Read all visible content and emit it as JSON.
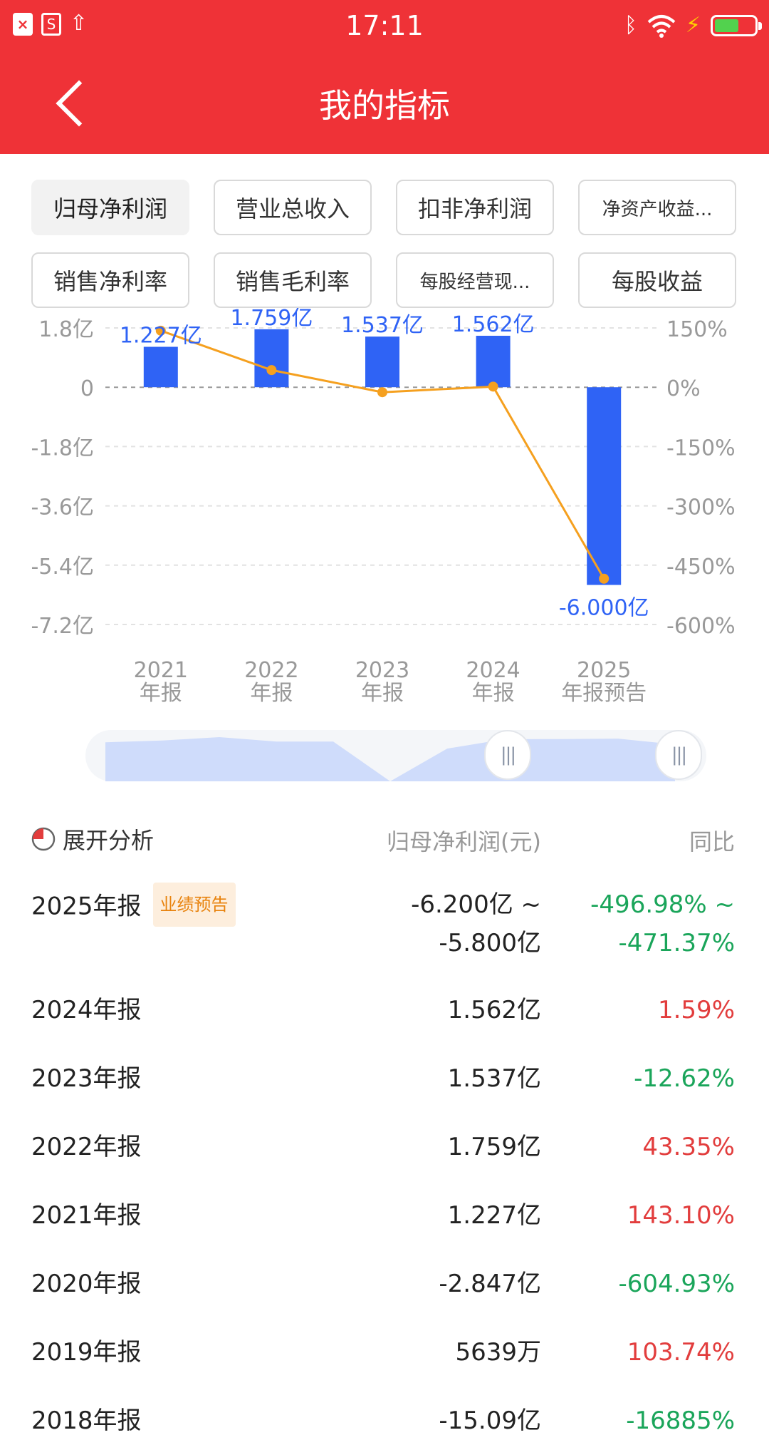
{
  "status_bar": {
    "time": "17:11",
    "left_icons": [
      "close-app-icon",
      "s-app-icon",
      "upload-icon"
    ],
    "right_icons": [
      "bluetooth-icon",
      "wifi-icon",
      "charging-icon",
      "battery-icon"
    ]
  },
  "header": {
    "title": "我的指标",
    "back_icon": "chevron-left-icon"
  },
  "tabs": [
    {
      "label": "归母净利润",
      "active": true
    },
    {
      "label": "营业总收入",
      "active": false
    },
    {
      "label": "扣非净利润",
      "active": false
    },
    {
      "label": "净资产收益...",
      "active": false
    },
    {
      "label": "销售净利率",
      "active": false
    },
    {
      "label": "销售毛利率",
      "active": false
    },
    {
      "label": "每股经营现...",
      "active": false
    },
    {
      "label": "每股收益",
      "active": false
    }
  ],
  "chart_data": {
    "type": "bar",
    "categories": [
      "2021\n年报",
      "2022\n年报",
      "2023\n年报",
      "2024\n年报",
      "2025\n年报预告"
    ],
    "y_left_ticks": [
      "1.8亿",
      "0",
      "-1.8亿",
      "-3.6亿",
      "-5.4亿",
      "-7.2亿"
    ],
    "y_right_ticks": [
      "150%",
      "0%",
      "-150%",
      "-300%",
      "-450%",
      "-600%"
    ],
    "ylim_left": [
      -7.2,
      1.8
    ],
    "ylim_right": [
      -600,
      150
    ],
    "series": [
      {
        "type": "bar",
        "values": [
          1.227,
          1.759,
          1.537,
          1.562,
          -6.0
        ],
        "color": "#2f63f5"
      },
      {
        "type": "line",
        "values": [
          143.1,
          43.35,
          -12.62,
          1.59,
          -484.18
        ],
        "color": "#f5a01f"
      }
    ],
    "data_labels": [
      "1.227亿",
      "1.759亿",
      "1.537亿",
      "1.562亿",
      "-6.000亿"
    ],
    "grid": true
  },
  "slider": {
    "overview_values": [
      1.227,
      1.4,
      1.759,
      1.3,
      1.3,
      -2.847,
      0.5639,
      1.537,
      1.562,
      1.6,
      1.0
    ],
    "handle_glyph": "|||"
  },
  "table": {
    "expand_label": "展开分析",
    "expand_icon": "pie-chart-icon",
    "col_value": "归母净利润(元)",
    "col_yoy": "同比",
    "rows": [
      {
        "period": "2025年报",
        "badge": "业绩预告",
        "value_line1": "-6.200亿 ~",
        "value_line2": "-5.800亿",
        "yoy_line1": "-496.98% ~",
        "yoy_line2": "-471.37%",
        "trend": "green"
      },
      {
        "period": "2024年报",
        "value_line1": "1.562亿",
        "yoy_line1": "1.59%",
        "trend": "red"
      },
      {
        "period": "2023年报",
        "value_line1": "1.537亿",
        "yoy_line1": "-12.62%",
        "trend": "green"
      },
      {
        "period": "2022年报",
        "value_line1": "1.759亿",
        "yoy_line1": "43.35%",
        "trend": "red"
      },
      {
        "period": "2021年报",
        "value_line1": "1.227亿",
        "yoy_line1": "143.10%",
        "trend": "red"
      },
      {
        "period": "2020年报",
        "value_line1": "-2.847亿",
        "yoy_line1": "-604.93%",
        "trend": "green"
      },
      {
        "period": "2019年报",
        "value_line1": "5639万",
        "yoy_line1": "103.74%",
        "trend": "red"
      },
      {
        "period": "2018年报",
        "value_line1": "-15.09亿",
        "yoy_line1": "-16885%",
        "trend": "green"
      }
    ]
  }
}
